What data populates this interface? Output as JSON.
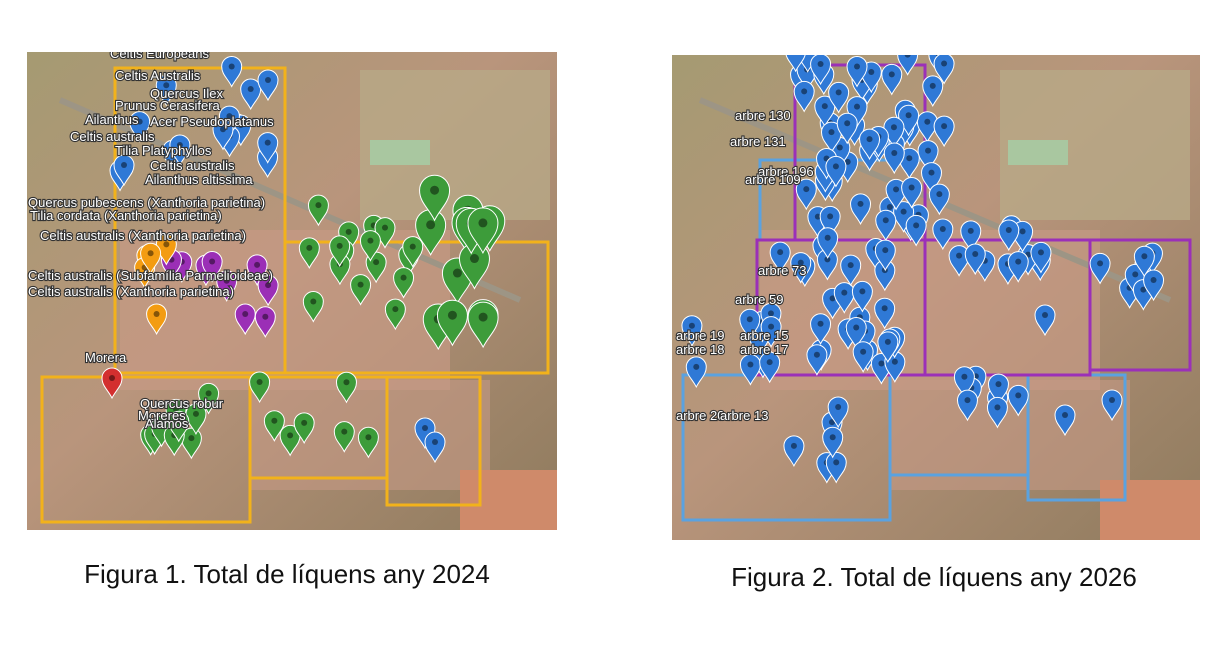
{
  "figures": [
    {
      "caption": "Figura 1. Total de líquens any 2024",
      "labels": [
        "Celtis Europeans",
        "Celtis Australis",
        "Quercus Ilex",
        "Prunus Cerasifera",
        "Ailanthus",
        "Acer Pseudoplatanus",
        "Celtis australis",
        "Tilia Platyphyllos",
        "Celtis australis",
        "Ailanthus altissima",
        "Quercus pubescens (Xanthoria parietina)",
        "Tilia cordata (Xanthoria parietina)",
        "Celtis australis (Xanthoria parietina)",
        "Celtis australis (Subfamília Parmelioideae)",
        "Celtis australis (Xanthoria parietina)",
        "Morera",
        "Quercus robur",
        "Moreres",
        "Alamos"
      ]
    },
    {
      "caption": "Figura 2. Total de líquens any 2026",
      "labels": [
        "arbre 130",
        "arbre 131",
        "arbre 196",
        "arbre 109",
        "arbre 73",
        "arbre 59",
        "arbre 19",
        "arbre 15",
        "arbre 18",
        "arbre 17",
        "arbre 20",
        "arbre 13"
      ]
    }
  ]
}
